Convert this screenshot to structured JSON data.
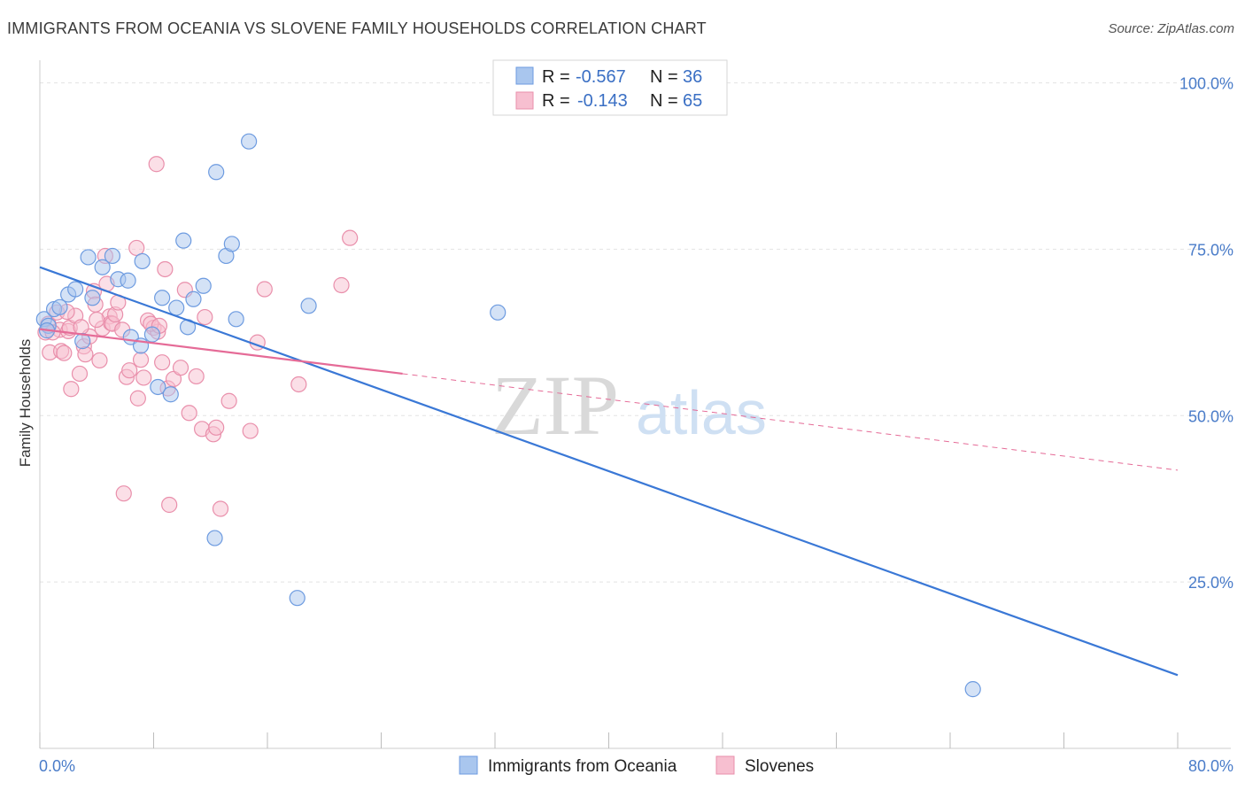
{
  "title": "IMMIGRANTS FROM OCEANIA VS SLOVENE FAMILY HOUSEHOLDS CORRELATION CHART",
  "source": "Source: ZipAtlas.com",
  "watermark": {
    "zip": "ZIP",
    "atlas": "atlas"
  },
  "legend": {
    "r_label": "R =",
    "n_label": "N =",
    "rows": [
      {
        "r": "-0.567",
        "n": "36",
        "color": "#a9c6ee",
        "stroke": "#6d9be0"
      },
      {
        "r": "-0.143",
        "n": "65",
        "color": "#f7bfd0",
        "stroke": "#e98fab"
      }
    ]
  },
  "bottom_legend": [
    {
      "label": "Immigrants from Oceania",
      "color": "#a9c6ee",
      "stroke": "#6d9be0"
    },
    {
      "label": "Slovenes",
      "color": "#f7bfd0",
      "stroke": "#e98fab"
    }
  ],
  "chart_data": {
    "type": "scatter",
    "xlabel": "",
    "ylabel": "Family Households",
    "xlim": [
      0,
      80
    ],
    "ylim": [
      0,
      105
    ],
    "x_tick_labels": [
      "0.0%",
      "80.0%"
    ],
    "y_ticks": [
      25,
      50,
      75,
      100
    ],
    "y_tick_labels": [
      "25.0%",
      "50.0%",
      "75.0%",
      "100.0%"
    ],
    "grid": "horizontal dashed",
    "colors": {
      "blue": "#3a78d6",
      "pink": "#e56b97"
    },
    "series": [
      {
        "name": "Immigrants from Oceania",
        "color": "#3a78d6",
        "points": [
          [
            0.3,
            64.5
          ],
          [
            0.6,
            63.5
          ],
          [
            1.0,
            66.0
          ],
          [
            1.4,
            66.3
          ],
          [
            2.0,
            68.2
          ],
          [
            2.5,
            69.0
          ],
          [
            3.4,
            73.8
          ],
          [
            3.7,
            67.7
          ],
          [
            4.4,
            72.3
          ],
          [
            5.1,
            74.0
          ],
          [
            5.5,
            70.5
          ],
          [
            6.2,
            70.3
          ],
          [
            6.4,
            61.8
          ],
          [
            7.1,
            60.5
          ],
          [
            7.2,
            73.2
          ],
          [
            7.9,
            62.2
          ],
          [
            8.3,
            54.3
          ],
          [
            8.6,
            67.7
          ],
          [
            9.2,
            53.2
          ],
          [
            9.6,
            66.2
          ],
          [
            10.1,
            76.3
          ],
          [
            10.4,
            63.3
          ],
          [
            10.8,
            67.5
          ],
          [
            11.5,
            69.5
          ],
          [
            12.4,
            86.6
          ],
          [
            13.1,
            74.0
          ],
          [
            13.5,
            75.8
          ],
          [
            13.8,
            64.5
          ],
          [
            14.7,
            91.2
          ],
          [
            12.3,
            31.6
          ],
          [
            18.1,
            22.6
          ],
          [
            18.9,
            66.5
          ],
          [
            32.2,
            65.5
          ],
          [
            65.6,
            8.9
          ],
          [
            0.5,
            62.8
          ],
          [
            3.0,
            61.2
          ]
        ],
        "trend": {
          "x1": 0,
          "y1": 72.3,
          "x2": 80,
          "y2": 11.0
        }
      },
      {
        "name": "Slovenes",
        "color": "#e56b97",
        "points": [
          [
            0.4,
            62.5
          ],
          [
            0.6,
            63.8
          ],
          [
            0.7,
            59.5
          ],
          [
            1.2,
            65.5
          ],
          [
            1.4,
            62.9
          ],
          [
            1.5,
            59.7
          ],
          [
            1.7,
            59.4
          ],
          [
            2.0,
            62.7
          ],
          [
            2.1,
            63.2
          ],
          [
            2.2,
            54.0
          ],
          [
            2.5,
            65.0
          ],
          [
            2.8,
            56.3
          ],
          [
            3.1,
            60.4
          ],
          [
            3.2,
            59.2
          ],
          [
            3.5,
            61.9
          ],
          [
            3.8,
            68.7
          ],
          [
            3.9,
            66.7
          ],
          [
            4.2,
            58.3
          ],
          [
            4.4,
            63.1
          ],
          [
            4.6,
            74.0
          ],
          [
            4.7,
            69.8
          ],
          [
            4.9,
            64.9
          ],
          [
            5.0,
            63.9
          ],
          [
            5.1,
            63.8
          ],
          [
            5.3,
            65.2
          ],
          [
            5.5,
            67.0
          ],
          [
            5.8,
            62.9
          ],
          [
            5.9,
            38.3
          ],
          [
            6.1,
            55.8
          ],
          [
            6.3,
            56.8
          ],
          [
            6.8,
            75.2
          ],
          [
            6.9,
            52.6
          ],
          [
            7.1,
            58.4
          ],
          [
            7.3,
            55.7
          ],
          [
            7.6,
            64.3
          ],
          [
            8.0,
            63.2
          ],
          [
            8.2,
            87.8
          ],
          [
            8.3,
            62.6
          ],
          [
            8.6,
            58.0
          ],
          [
            8.8,
            72.0
          ],
          [
            9.0,
            54.1
          ],
          [
            9.1,
            36.6
          ],
          [
            9.4,
            55.5
          ],
          [
            9.9,
            57.2
          ],
          [
            10.2,
            68.9
          ],
          [
            10.5,
            50.4
          ],
          [
            11.0,
            55.9
          ],
          [
            11.4,
            48.0
          ],
          [
            11.6,
            64.8
          ],
          [
            12.2,
            47.2
          ],
          [
            12.4,
            48.2
          ],
          [
            12.7,
            36.0
          ],
          [
            13.3,
            52.2
          ],
          [
            14.8,
            47.7
          ],
          [
            15.3,
            61.0
          ],
          [
            15.8,
            69.0
          ],
          [
            18.2,
            54.7
          ],
          [
            21.2,
            69.6
          ],
          [
            21.8,
            76.7
          ],
          [
            0.9,
            62.5
          ],
          [
            1.9,
            65.6
          ],
          [
            2.9,
            63.3
          ],
          [
            4.0,
            64.4
          ],
          [
            7.8,
            63.8
          ],
          [
            8.4,
            63.5
          ]
        ],
        "trend": {
          "x1": 0,
          "y1": 63.0,
          "x2": 25.5,
          "y2": 56.3
        },
        "trend_extension": {
          "x1": 25.5,
          "y1": 56.3,
          "x2": 80,
          "y2": 41.8
        }
      }
    ]
  }
}
